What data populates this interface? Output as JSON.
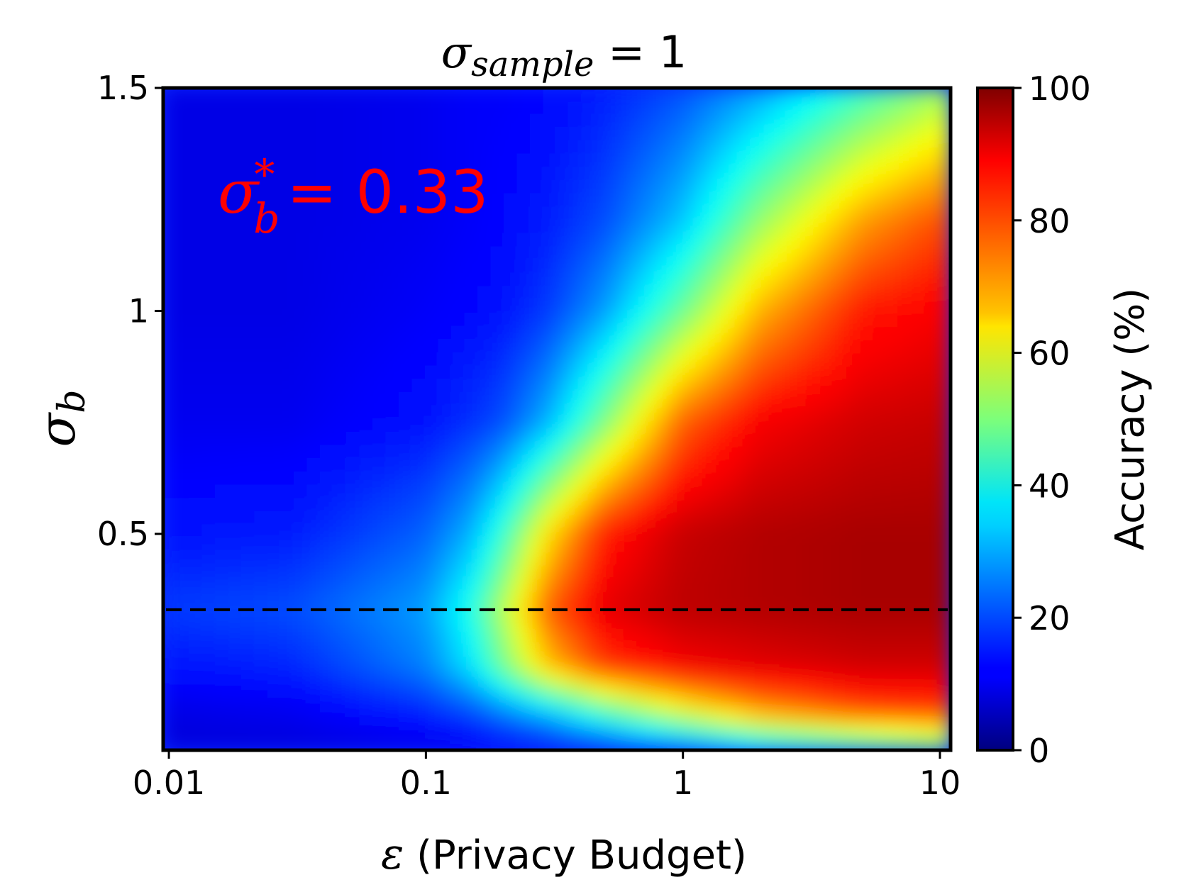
{
  "chart_data": {
    "type": "heatmap",
    "title": {
      "symbol": "σ",
      "subscript": "sample",
      "suffix": " = 1"
    },
    "xlabel": {
      "symbol": "ε",
      "text": " (Privacy Budget)"
    },
    "ylabel": {
      "symbol": "σ",
      "subscript": "b"
    },
    "x_scale": "log",
    "xlim": [
      0.0095,
      11
    ],
    "ylim": [
      0.015,
      1.5
    ],
    "x_ticks": [
      {
        "value": 0.01,
        "label": "0.01"
      },
      {
        "value": 0.1,
        "label": "0.1"
      },
      {
        "value": 1,
        "label": "1"
      },
      {
        "value": 10,
        "label": "10"
      }
    ],
    "y_ticks": [
      {
        "value": 0.5,
        "label": "0.5"
      },
      {
        "value": 1,
        "label": "1"
      },
      {
        "value": 1.5,
        "label": "1.5"
      }
    ],
    "colorbar": {
      "label": "Accuracy (%)",
      "colormap": "jet",
      "range": [
        0,
        100
      ],
      "ticks": [
        {
          "value": 0,
          "label": "0"
        },
        {
          "value": 20,
          "label": "20"
        },
        {
          "value": 40,
          "label": "40"
        },
        {
          "value": 60,
          "label": "60"
        },
        {
          "value": 80,
          "label": "80"
        },
        {
          "value": 100,
          "label": "100"
        }
      ]
    },
    "reference_line": {
      "axis": "y",
      "value": 0.33,
      "style": "dashed",
      "color": "#000000"
    },
    "annotation": {
      "symbol": "σ",
      "subscript": "b",
      "superscript": "*",
      "text": "= 0.33",
      "color": "#ff0000"
    },
    "accuracy_field": {
      "description_of_values": "approximate accuracy (%) samples along sigma_b rows",
      "x_values": [
        0.01,
        0.03,
        0.1,
        0.15,
        0.2,
        0.3,
        0.5,
        1,
        2,
        5,
        10
      ],
      "rows": [
        {
          "sigma_b": 1.5,
          "accuracy": [
            10,
            10,
            11,
            12,
            12,
            13,
            15,
            20,
            28,
            42,
            52
          ]
        },
        {
          "sigma_b": 1.2,
          "accuracy": [
            10,
            10,
            11,
            12,
            13,
            15,
            20,
            32,
            52,
            72,
            80
          ]
        },
        {
          "sigma_b": 1.0,
          "accuracy": [
            10,
            10,
            12,
            13,
            14,
            18,
            28,
            48,
            70,
            85,
            88
          ]
        },
        {
          "sigma_b": 0.75,
          "accuracy": [
            11,
            11,
            14,
            17,
            20,
            30,
            50,
            78,
            88,
            92,
            93
          ]
        },
        {
          "sigma_b": 0.5,
          "accuracy": [
            14,
            15,
            22,
            30,
            42,
            65,
            85,
            93,
            95,
            96,
            96
          ]
        },
        {
          "sigma_b": 0.33,
          "accuracy": [
            18,
            20,
            28,
            40,
            55,
            78,
            90,
            94,
            95,
            96,
            96
          ]
        },
        {
          "sigma_b": 0.2,
          "accuracy": [
            14,
            16,
            25,
            35,
            48,
            68,
            82,
            88,
            90,
            92,
            92
          ]
        },
        {
          "sigma_b": 0.1,
          "accuracy": [
            10,
            11,
            16,
            20,
            25,
            32,
            45,
            60,
            72,
            80,
            82
          ]
        },
        {
          "sigma_b": 0.02,
          "accuracy": [
            9,
            9,
            10,
            11,
            12,
            14,
            18,
            25,
            35,
            42,
            48
          ]
        }
      ]
    },
    "colors": {
      "text": "#000000",
      "annotation": "#ff0000"
    }
  }
}
